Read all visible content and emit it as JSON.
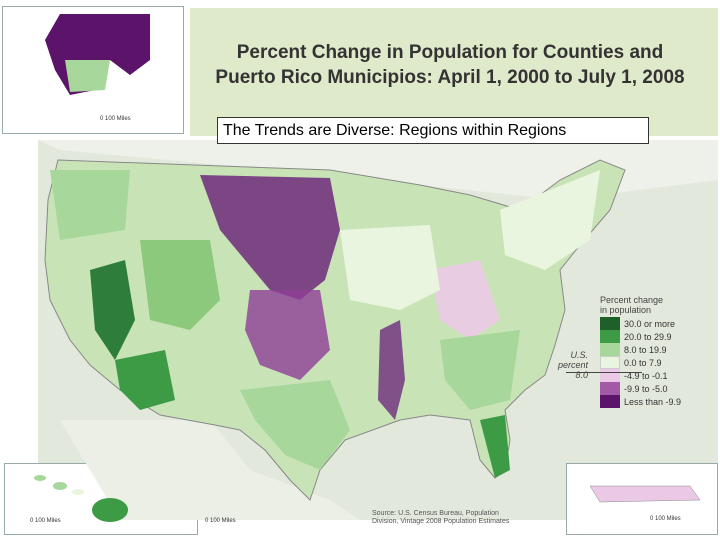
{
  "title_line1": "Percent Change in Population for Counties and",
  "title_line2": "Puerto Rico Municipios: April 1, 2000 to July 1, 2008",
  "subtitle": "The Trends are Diverse:  Regions within Regions",
  "legend": {
    "title_line1": "Percent change",
    "title_line2": "in population",
    "items": [
      {
        "label": "30.0 or more",
        "color": "#1f5f2a"
      },
      {
        "label": "20.0 to 29.9",
        "color": "#3d9a45"
      },
      {
        "label": "8.0 to 19.9",
        "color": "#a7d79b"
      },
      {
        "label": "0.0 to 7.9",
        "color": "#eaf5df"
      },
      {
        "label": "-4.9 to -0.1",
        "color": "#ebc9e6"
      },
      {
        "label": "-9.9 to -5.0",
        "color": "#a35aa6"
      },
      {
        "label": "Less than -9.9",
        "color": "#5c136a"
      }
    ],
    "us_percent_line1": "U.S.",
    "us_percent_line2": "percent",
    "us_percent_value": "8.0"
  },
  "alaska_scale": "0    100 Miles",
  "hawaii_scale": "0       100 Miles",
  "pr_scale": "0     100 Miles",
  "map_scale": "0        100 Miles",
  "source_line1": "Source: U.S. Census Bureau, Population",
  "source_line2": "Division, Vintage 2008 Population Estimates"
}
